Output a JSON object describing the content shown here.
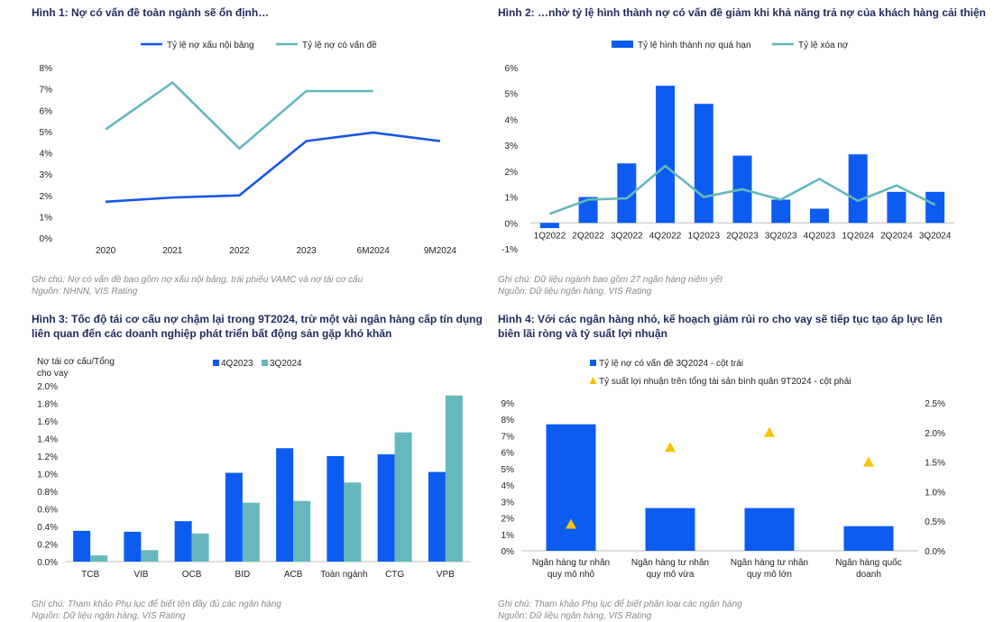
{
  "colors": {
    "blue": "#1557e8",
    "teal": "#66b8bd",
    "bar_blue": "#0d5cf2",
    "yellow": "#f5c400",
    "title": "#1f2a5a"
  },
  "panels": [
    {
      "title": "Hình 1: Nợ có vấn đề toàn ngành sẽ ổn định…",
      "note1": "Ghi chú: Nợ có vấn đề bao gồm nợ xấu nội bảng, trái phiếu VAMC và nợ tái cơ cấu",
      "note2": "Nguồn: NHNN, VIS Rating"
    },
    {
      "title": "Hình 2: …nhờ tỷ lệ hình thành nợ có vấn đề giảm khi khả năng trả nợ của khách hàng cải thiện",
      "note1": "Ghi chú: Dữ liệu ngành bao gồm 27 ngân hàng niêm yết",
      "note2": "Nguồn: Dữ liệu ngân hàng, VIS Rating"
    },
    {
      "title": "Hình 3: Tốc độ tái cơ cấu nợ chậm lại trong 9T2024, trừ một vài ngân hàng cấp tín dụng liên quan đến các doanh nghiệp phát triển bất động sản gặp khó khăn",
      "note1": "Ghi chú: Tham khảo Phụ lục để biết tên đầy đủ các ngân hàng",
      "note2": "Nguồn: Dữ liệu ngân hàng, VIS Rating"
    },
    {
      "title": "Hình 4: Với các ngân hàng nhỏ, kế hoạch giảm rủi ro cho vay sẽ tiếp tục tạo áp lực lên biên lãi ròng và tỷ suất lợi nhuận",
      "note1": "Ghi chú: Tham khảo Phụ lục để biết phân loại các ngân hàng",
      "note2": "Nguồn: Dữ liệu ngân hàng, VIS Rating"
    }
  ],
  "chart_data": [
    {
      "type": "line",
      "categories": [
        "2020",
        "2021",
        "2022",
        "2023",
        "6M2024",
        "9M2024"
      ],
      "series": [
        {
          "name": "Tỷ lệ nợ xấu nội bảng",
          "values": [
            1.7,
            1.9,
            2.0,
            4.55,
            4.95,
            4.55
          ]
        },
        {
          "name": "Tỷ lệ nợ có vấn đề",
          "values": [
            5.1,
            7.3,
            4.2,
            6.9,
            6.9,
            null
          ]
        }
      ],
      "yticks": [
        "0%",
        "1%",
        "2%",
        "3%",
        "4%",
        "5%",
        "6%",
        "7%",
        "8%"
      ],
      "ylim": [
        0,
        8
      ],
      "legend": "top"
    },
    {
      "type": "bar",
      "categories": [
        "1Q2022",
        "2Q2022",
        "3Q2022",
        "4Q2022",
        "1Q2023",
        "2Q2023",
        "3Q2023",
        "4Q2023",
        "1Q2024",
        "2Q2024",
        "3Q2024"
      ],
      "series": [
        {
          "name": "Tỷ lệ hình thành nợ quá hạn",
          "kind": "bar",
          "values": [
            -0.2,
            1.0,
            2.3,
            5.3,
            4.6,
            2.6,
            0.9,
            0.55,
            2.65,
            1.2,
            1.2
          ]
        },
        {
          "name": "Tỷ lệ xóa nợ",
          "kind": "line",
          "values": [
            0.35,
            0.9,
            0.95,
            2.2,
            1.0,
            1.3,
            0.9,
            1.7,
            0.85,
            1.45,
            0.7
          ]
        }
      ],
      "yticks": [
        "-1%",
        "0%",
        "1%",
        "2%",
        "3%",
        "4%",
        "5%",
        "6%"
      ],
      "ylim": [
        -1,
        6
      ],
      "legend": "top"
    },
    {
      "type": "bar",
      "ylabel": "Nợ tái cơ cấu/Tổng cho vay",
      "categories": [
        "TCB",
        "VIB",
        "OCB",
        "BID",
        "ACB",
        "Toàn ngành",
        "CTG",
        "VPB"
      ],
      "series": [
        {
          "name": "4Q2023",
          "values": [
            0.35,
            0.34,
            0.46,
            1.01,
            1.29,
            1.2,
            1.22,
            1.02
          ]
        },
        {
          "name": "3Q2024",
          "values": [
            0.07,
            0.13,
            0.32,
            0.67,
            0.69,
            0.9,
            1.47,
            1.89
          ]
        }
      ],
      "yticks": [
        "0.0%",
        "0.2%",
        "0.4%",
        "0.6%",
        "0.8%",
        "1.0%",
        "1.2%",
        "1.4%",
        "1.6%",
        "1.8%",
        "2.0%"
      ],
      "ylim": [
        0,
        2.0
      ],
      "legend": "top"
    },
    {
      "type": "bar",
      "categories": [
        [
          "Ngân hàng tư nhân",
          "quy mô nhỏ"
        ],
        [
          "Ngân hàng tư nhân",
          "quy mô vừa"
        ],
        [
          "Ngân hàng tư nhân",
          "quy mô lớn"
        ],
        [
          "Ngân hàng quốc",
          "doanh"
        ]
      ],
      "series": [
        {
          "name": "Tỷ lệ nợ có vấn đề 3Q2024 - cột trái",
          "kind": "bar",
          "axis": "left",
          "values": [
            7.7,
            2.6,
            2.6,
            1.5
          ]
        },
        {
          "name": "Tỷ suất lợi nhuận trên tổng tài sản bình quân 9T2024 - cột phải",
          "kind": "marker",
          "axis": "right",
          "values": [
            0.45,
            1.75,
            2.0,
            1.5
          ]
        }
      ],
      "yticks_left": [
        "0%",
        "1%",
        "2%",
        "3%",
        "4%",
        "5%",
        "6%",
        "7%",
        "8%",
        "9%"
      ],
      "yticks_right": [
        "0.0%",
        "0.5%",
        "1.0%",
        "1.5%",
        "2.0%",
        "2.5%"
      ],
      "ylim_left": [
        0,
        9
      ],
      "ylim_right": [
        0,
        2.5
      ],
      "legend": "top"
    }
  ]
}
